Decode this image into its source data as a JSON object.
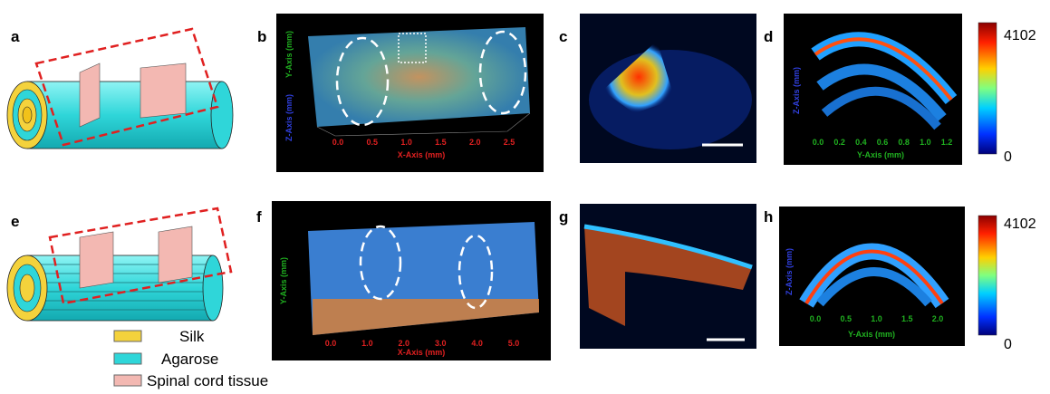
{
  "panel_labels": [
    "a",
    "b",
    "c",
    "d",
    "e",
    "f",
    "g",
    "h"
  ],
  "legend": [
    "Silk",
    "Agarose",
    "Spinal cord tissue"
  ],
  "panel_b": {
    "x_axis": "X-Axis (mm)",
    "x_ticks": [
      "0.0",
      "0.5",
      "1.0",
      "1.5",
      "2.0",
      "2.5"
    ],
    "y_axis": "Y-Axis (mm)",
    "z_axis": "Z-Axis (mm)"
  },
  "panel_d": {
    "x_axis": "Y-Axis (mm)",
    "x_ticks": [
      "0.0",
      "0.2",
      "0.4",
      "0.6",
      "0.8",
      "1.0",
      "1.2"
    ],
    "z_axis": "Z-Axis (mm)"
  },
  "panel_f": {
    "x_axis": "X-Axis (mm)",
    "x_ticks": [
      "0.0",
      "1.0",
      "2.0",
      "3.0",
      "4.0",
      "5.0"
    ],
    "y_axis": "Y-Axis (mm)"
  },
  "panel_h": {
    "x_axis": "Y-Axis (mm)",
    "x_ticks": [
      "0.0",
      "0.5",
      "1.0",
      "1.5",
      "2.0"
    ],
    "z_axis": "Z-Axis (mm)"
  },
  "colorbars": [
    {
      "max": "4102",
      "min": "0"
    },
    {
      "max": "4102",
      "min": "0"
    }
  ]
}
